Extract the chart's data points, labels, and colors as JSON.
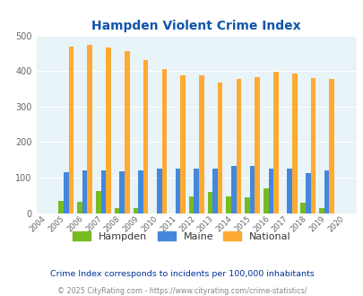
{
  "title": "Hampden Violent Crime Index",
  "years": [
    2004,
    2005,
    2006,
    2007,
    2008,
    2009,
    2010,
    2011,
    2012,
    2013,
    2014,
    2015,
    2016,
    2017,
    2018,
    2019,
    2020
  ],
  "hampden": [
    0,
    35,
    33,
    63,
    15,
    13,
    0,
    0,
    46,
    59,
    47,
    45,
    70,
    0,
    30,
    14,
    0
  ],
  "maine": [
    0,
    115,
    119,
    121,
    118,
    121,
    126,
    126,
    126,
    126,
    132,
    132,
    125,
    126,
    113,
    119,
    0
  ],
  "national": [
    0,
    469,
    474,
    467,
    456,
    432,
    405,
    387,
    387,
    367,
    377,
    383,
    397,
    394,
    380,
    379,
    0
  ],
  "hampden_color": "#77bb22",
  "maine_color": "#4488dd",
  "national_color": "#ffaa33",
  "bg_color": "#e8f4f8",
  "title_color": "#1155aa",
  "ylabel_max": 500,
  "yticks": [
    0,
    100,
    200,
    300,
    400,
    500
  ],
  "note": "Crime Index corresponds to incidents per 100,000 inhabitants",
  "footer": "© 2025 CityRating.com - https://www.cityrating.com/crime-statistics/",
  "note_color": "#003399",
  "footer_color": "#888888"
}
